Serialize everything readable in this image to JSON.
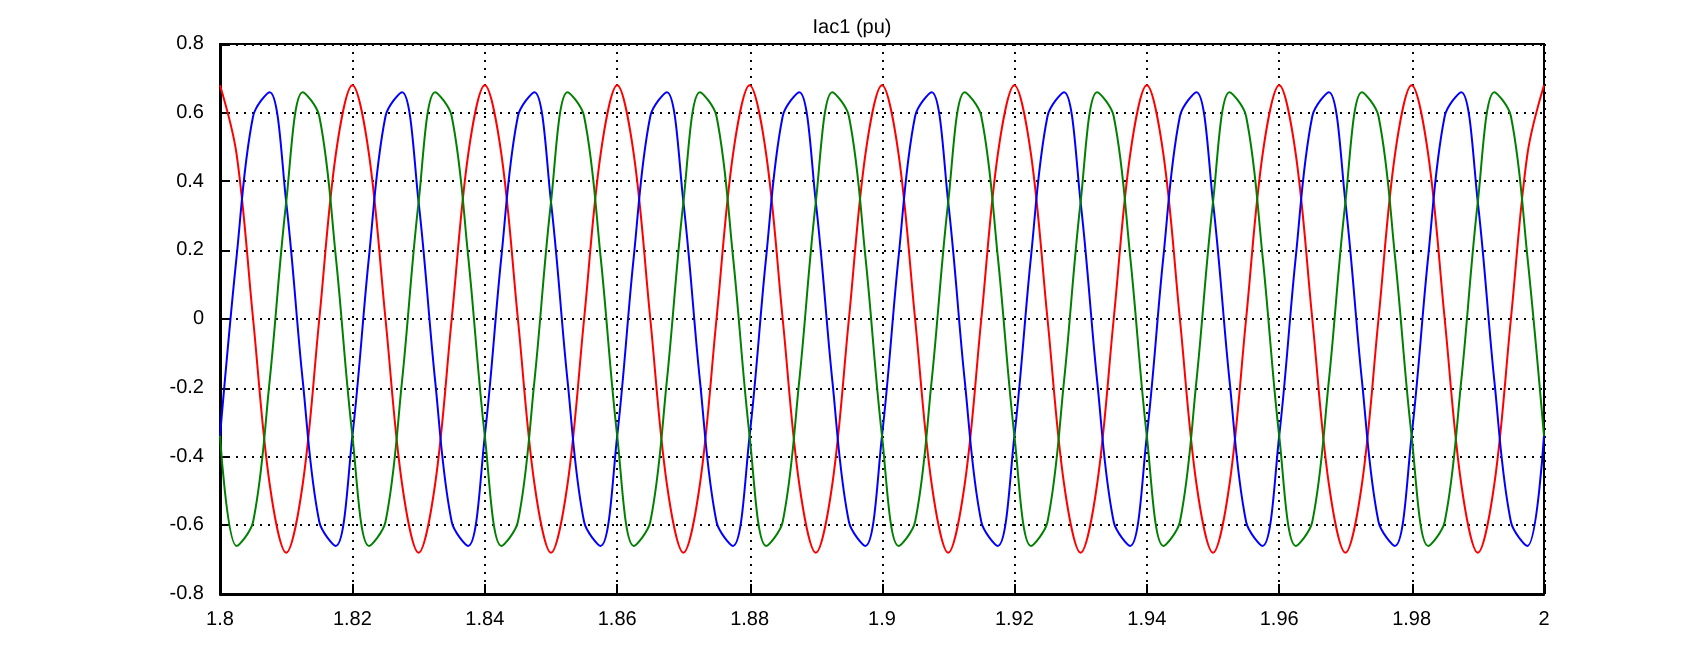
{
  "chart_data": {
    "type": "line",
    "title": "Iac1 (pu)",
    "x": [
      1.8,
      1.8025,
      1.805,
      1.8075,
      1.81,
      1.8125,
      1.815,
      1.8175,
      1.82,
      1.8225,
      1.825,
      1.8275,
      1.83,
      1.8325,
      1.835,
      1.8375,
      1.84,
      1.8425,
      1.845,
      1.8475,
      1.85,
      1.8525,
      1.855,
      1.8575,
      1.86,
      1.8625,
      1.865,
      1.8675,
      1.87,
      1.8725,
      1.875,
      1.8775,
      1.88,
      1.8825,
      1.885,
      1.8875,
      1.89,
      1.8925,
      1.895,
      1.8975,
      1.9,
      1.9025,
      1.905,
      1.9075,
      1.91,
      1.9125,
      1.915,
      1.9175,
      1.92,
      1.9225,
      1.925,
      1.9275,
      1.93,
      1.9325,
      1.935,
      1.9375,
      1.94,
      1.9425,
      1.945,
      1.9475,
      1.95,
      1.9525,
      1.955,
      1.9575,
      1.96,
      1.9625,
      1.965,
      1.9675,
      1.97,
      1.9725,
      1.975,
      1.9775,
      1.98,
      1.9825,
      1.985,
      1.9875,
      1.99,
      1.9925,
      1.995,
      1.9975,
      2.0
    ],
    "series": [
      {
        "color": "#ff0000",
        "values": [
          0.68,
          0.48,
          0,
          -0.48,
          -0.68,
          -0.48,
          0,
          0.48,
          0.68,
          0.48,
          0,
          -0.48,
          -0.68,
          -0.48,
          0,
          0.48,
          0.68,
          0.48,
          0,
          -0.48,
          -0.68,
          -0.48,
          0,
          0.48,
          0.68,
          0.48,
          0,
          -0.48,
          -0.68,
          -0.48,
          0,
          0.48,
          0.68,
          0.48,
          0,
          -0.48,
          -0.68,
          -0.48,
          0,
          0.48,
          0.68,
          0.48,
          0,
          -0.48,
          -0.68,
          -0.48,
          0,
          0.48,
          0.68,
          0.48,
          0,
          -0.48,
          -0.68,
          -0.48,
          0,
          0.48,
          0.68,
          0.48,
          0,
          -0.48,
          -0.68,
          -0.48,
          0,
          0.48,
          0.68,
          0.48,
          0,
          -0.48,
          -0.68,
          -0.48,
          0,
          0.48,
          0.68,
          0.48,
          0,
          -0.48,
          -0.68,
          -0.48,
          0,
          0.48,
          0.68
        ]
      },
      {
        "color": "#0000ff",
        "values": [
          -0.34,
          0.18,
          0.59,
          0.66,
          0.34,
          -0.18,
          -0.59,
          -0.66,
          -0.34,
          0.18,
          0.59,
          0.66,
          0.34,
          -0.18,
          -0.59,
          -0.66,
          -0.34,
          0.18,
          0.59,
          0.66,
          0.34,
          -0.18,
          -0.59,
          -0.66,
          -0.34,
          0.18,
          0.59,
          0.66,
          0.34,
          -0.18,
          -0.59,
          -0.66,
          -0.34,
          0.18,
          0.59,
          0.66,
          0.34,
          -0.18,
          -0.59,
          -0.66,
          -0.34,
          0.18,
          0.59,
          0.66,
          0.34,
          -0.18,
          -0.59,
          -0.66,
          -0.34,
          0.18,
          0.59,
          0.66,
          0.34,
          -0.18,
          -0.59,
          -0.66,
          -0.34,
          0.18,
          0.59,
          0.66,
          0.34,
          -0.18,
          -0.59,
          -0.66,
          -0.34,
          0.18,
          0.59,
          0.66,
          0.34,
          -0.18,
          -0.59,
          -0.66,
          -0.34,
          0.18,
          0.59,
          0.66,
          0.34,
          -0.18,
          -0.59,
          -0.66,
          -0.34
        ]
      },
      {
        "color": "#008000",
        "values": [
          -0.34,
          -0.66,
          -0.59,
          -0.18,
          0.34,
          0.66,
          0.59,
          0.18,
          -0.34,
          -0.66,
          -0.59,
          -0.18,
          0.34,
          0.66,
          0.59,
          0.18,
          -0.34,
          -0.66,
          -0.59,
          -0.18,
          0.34,
          0.66,
          0.59,
          0.18,
          -0.34,
          -0.66,
          -0.59,
          -0.18,
          0.34,
          0.66,
          0.59,
          0.18,
          -0.34,
          -0.66,
          -0.59,
          -0.18,
          0.34,
          0.66,
          0.59,
          0.18,
          -0.34,
          -0.66,
          -0.59,
          -0.18,
          0.34,
          0.66,
          0.59,
          0.18,
          -0.34,
          -0.66,
          -0.59,
          -0.18,
          0.34,
          0.66,
          0.59,
          0.18,
          -0.34,
          -0.66,
          -0.59,
          -0.18,
          0.34,
          0.66,
          0.59,
          0.18,
          -0.34,
          -0.66,
          -0.59,
          -0.18,
          0.34,
          0.66,
          0.59,
          0.18,
          -0.34,
          -0.66,
          -0.59,
          -0.18,
          0.34,
          0.66,
          0.59,
          0.18,
          -0.34
        ]
      }
    ],
    "xlim": [
      1.8,
      2.0
    ],
    "xticks": [
      1.8,
      1.82,
      1.84,
      1.86,
      1.88,
      1.9,
      1.92,
      1.94,
      1.96,
      1.98,
      2
    ],
    "ylim": [
      -0.8,
      0.8
    ],
    "yticks": [
      -0.8,
      -0.6,
      -0.4,
      -0.2,
      0,
      0.2,
      0.4,
      0.6,
      0.8
    ],
    "grid": true,
    "line_style": "solid",
    "marker": "none"
  }
}
